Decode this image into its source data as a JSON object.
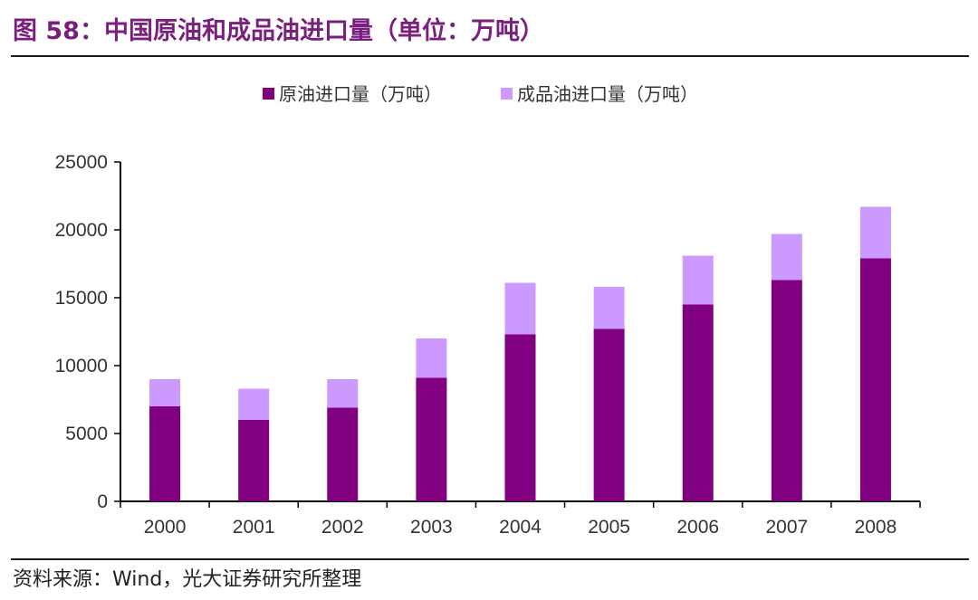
{
  "header": {
    "title": "图 58：中国原油和成品油进口量（单位：万吨）"
  },
  "footer": {
    "source": "资料来源：Wind，光大证券研究所整理"
  },
  "colors": {
    "title": "#7b1f7e",
    "crude": "#800080",
    "product": "#cc99ff"
  },
  "chart_data": {
    "type": "bar",
    "stacked": true,
    "categories": [
      "2000",
      "2001",
      "2002",
      "2003",
      "2004",
      "2005",
      "2006",
      "2007",
      "2008"
    ],
    "series": [
      {
        "name": "原油进口量（万吨）",
        "color": "#800080",
        "values": [
          7000,
          6000,
          6900,
          9100,
          12300,
          12700,
          14500,
          16300,
          17900
        ]
      },
      {
        "name": "成品油进口量（万吨）",
        "color": "#cc99ff",
        "values": [
          2000,
          2300,
          2100,
          2900,
          3800,
          3100,
          3600,
          3400,
          3800
        ]
      }
    ],
    "title": "",
    "xlabel": "",
    "ylabel": "",
    "ylim": [
      0,
      25000
    ],
    "yticks": [
      0,
      5000,
      10000,
      15000,
      20000,
      25000
    ],
    "legend_position": "top",
    "grid": false
  }
}
